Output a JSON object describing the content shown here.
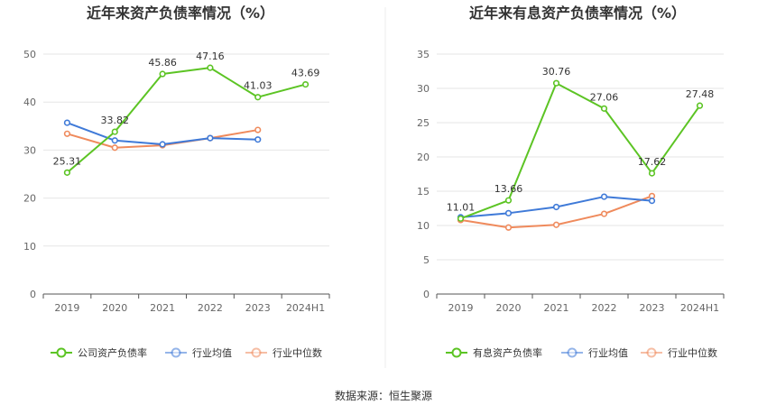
{
  "source_label": "数据来源：恒生聚源",
  "colors": {
    "green": "#5cc424",
    "blue": "#3f7ad8",
    "orange": "#ef8a5c",
    "grid": "#e6e6e6",
    "axis": "#555555"
  },
  "chart_data": [
    {
      "type": "line",
      "title": "近年来资产负债率情况（%）",
      "categories": [
        "2019",
        "2020",
        "2021",
        "2022",
        "2023",
        "2024H1"
      ],
      "ylim": [
        0,
        50
      ],
      "yticks": [
        0,
        10,
        20,
        30,
        40,
        50
      ],
      "grid": true,
      "legend_position": "bottom",
      "series": [
        {
          "name": "公司资产负债率",
          "color_key": "green",
          "values": [
            25.31,
            33.82,
            45.86,
            47.16,
            41.03,
            43.69
          ],
          "labels": [
            "25.31",
            "33.82",
            "45.86",
            "47.16",
            "41.03",
            "43.69"
          ]
        },
        {
          "name": "行业均值",
          "color_key": "blue",
          "values": [
            35.7,
            32.0,
            31.2,
            32.5,
            32.2,
            null
          ]
        },
        {
          "name": "行业中位数",
          "color_key": "orange",
          "values": [
            33.4,
            30.5,
            31.0,
            32.5,
            34.2,
            null
          ]
        }
      ]
    },
    {
      "type": "line",
      "title": "近年来有息资产负债率情况（%）",
      "categories": [
        "2019",
        "2020",
        "2021",
        "2022",
        "2023",
        "2024H1"
      ],
      "ylim": [
        0,
        35
      ],
      "yticks": [
        0,
        5,
        10,
        15,
        20,
        25,
        30,
        35
      ],
      "grid": true,
      "legend_position": "bottom",
      "series": [
        {
          "name": "有息资产负债率",
          "color_key": "green",
          "values": [
            11.01,
            13.66,
            30.76,
            27.06,
            17.62,
            27.48
          ],
          "labels": [
            "11.01",
            "13.66",
            "30.76",
            "27.06",
            "17.62",
            "27.48"
          ]
        },
        {
          "name": "行业均值",
          "color_key": "blue",
          "values": [
            11.2,
            11.8,
            12.7,
            14.2,
            13.6,
            null
          ]
        },
        {
          "name": "行业中位数",
          "color_key": "orange",
          "values": [
            10.8,
            9.7,
            10.1,
            11.7,
            14.3,
            null
          ]
        }
      ]
    }
  ]
}
